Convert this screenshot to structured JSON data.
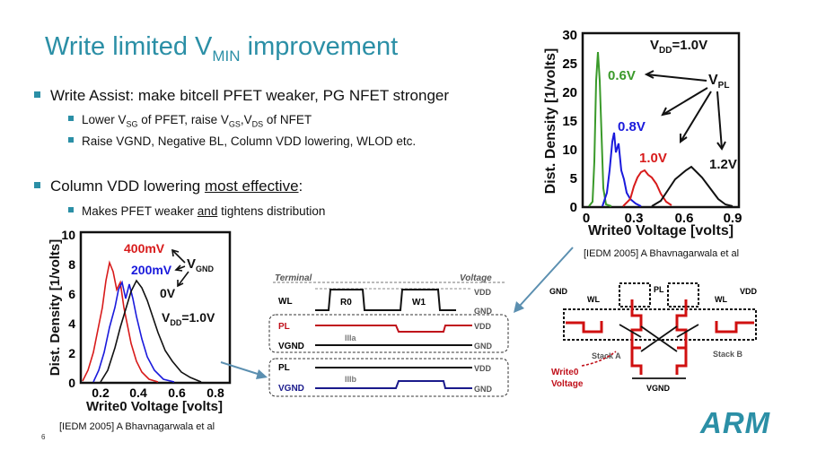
{
  "slide": {
    "title_main": "Write limited V",
    "title_sub": "MIN",
    "title_rest": " improvement",
    "bullet1": {
      "text": "Write Assist: make bitcell PFET weaker, PG NFET stronger",
      "sub1": {
        "a": "Lower V",
        "a_sub": "SG",
        "b": " of PFET, raise V",
        "b_sub": "GS",
        "c": ",V",
        "c_sub": "DS",
        "d": " of NFET"
      },
      "sub2": "Raise VGND, Negative BL, Column VDD lowering, WLOD etc."
    },
    "bullet2": {
      "text_a": "Column VDD lowering ",
      "text_u": "most effective",
      "text_b": ":",
      "sub1_a": "Makes PFET weaker ",
      "sub1_u": "and",
      "sub1_b": " tightens distribution"
    },
    "citation_top": "[IEDM 2005] A Bhavnagarwala et al",
    "citation_bottom": "[IEDM 2005] A Bhavnagarwala et al",
    "page_number": "6",
    "logo": "ARM",
    "accent_color": "#2b8fa6"
  },
  "chart_top": {
    "ylabel": "Dist. Density [1/volts]",
    "xlabel": "Write0 Voltage [volts]",
    "vdd_label_a": "V",
    "vdd_label_sub": "DD",
    "vdd_label_b": "=1.0V",
    "vpl_a": "V",
    "vpl_sub": "PL",
    "yticks": [
      "0",
      "5",
      "10",
      "15",
      "20",
      "25",
      "30"
    ],
    "xticks": [
      "0",
      "0.3",
      "0.6",
      "0.9"
    ],
    "series_labels": [
      "0.6V",
      "0.8V",
      "1.0V",
      "1.2V"
    ],
    "series_colors": [
      "#3a9a2a",
      "#1a1adc",
      "#d81b1b",
      "#111111"
    ]
  },
  "chart_bottom": {
    "ylabel": "Dist. Density [1/volts]",
    "xlabel": "Write0 Voltage [volts]",
    "vgnd_a": "V",
    "vgnd_sub": "GND",
    "vdd_a": "V",
    "vdd_sub": "DD",
    "vdd_b": "=1.0V",
    "yticks": [
      "0",
      "2",
      "4",
      "6",
      "8",
      "10"
    ],
    "xticks": [
      "0.2",
      "0.4",
      "0.6",
      "0.8"
    ],
    "series_labels": [
      "400mV",
      "200mV",
      "0V"
    ],
    "series_colors": [
      "#d81b1b",
      "#1a1adc",
      "#111111"
    ]
  },
  "timing": {
    "terminal": "Terminal",
    "voltage": "Voltage",
    "wl": "WL",
    "r0": "R0",
    "w1": "W1",
    "pl": "PL",
    "vgnd": "VGND",
    "pl2": "PL",
    "vgnd2": "VGND",
    "iiia": "IIIa",
    "iiib": "IIIb",
    "vdd1": "VDD",
    "gnd1": "GND",
    "vdd2": "VDD",
    "gnd2": "GND",
    "vdd3": "VDD",
    "gnd3": "GND"
  },
  "circuit": {
    "gnd": "GND",
    "vdd": "VDD",
    "wl_left": "WL",
    "wl_right": "WL",
    "pl": "PL",
    "stack_a": "Stack A",
    "stack_b": "Stack B",
    "write0": "Write0",
    "voltage": "Voltage",
    "vgnd": "VGND"
  }
}
